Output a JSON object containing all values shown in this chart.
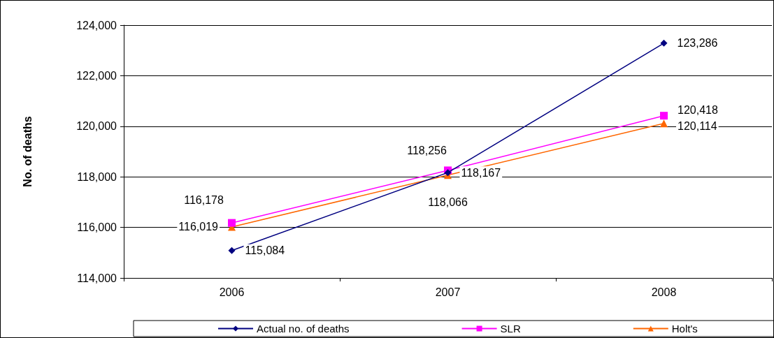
{
  "chart_data": {
    "type": "line",
    "ylabel": "No. of deaths",
    "categories": [
      "2006",
      "2007",
      "2008"
    ],
    "series": [
      {
        "name": "Actual no. of deaths",
        "color": "#000080",
        "marker": "diamond",
        "values": [
          115084,
          118167,
          123286
        ],
        "value_labels": [
          "115,084",
          "118,167",
          "123,286"
        ]
      },
      {
        "name": "SLR",
        "color": "#ff00ff",
        "marker": "square",
        "values": [
          116178,
          118256,
          120418
        ],
        "value_labels": [
          "116,178",
          "118,256",
          "120,418"
        ]
      },
      {
        "name": "Holt's",
        "color": "#ff6600",
        "marker": "triangle",
        "values": [
          116019,
          118066,
          120114
        ],
        "value_labels": [
          "116,019",
          "118,066",
          "120,114"
        ]
      }
    ],
    "ylim": [
      114000,
      124000
    ],
    "yticks": [
      {
        "value": 114000,
        "label": "114,000"
      },
      {
        "value": 116000,
        "label": "116,000"
      },
      {
        "value": 118000,
        "label": "118,000"
      },
      {
        "value": 120000,
        "label": "120,000"
      },
      {
        "value": 122000,
        "label": "122,000"
      },
      {
        "value": 124000,
        "label": "124,000"
      }
    ],
    "grid": "y",
    "legend": "bottom",
    "line_style": "solid"
  }
}
